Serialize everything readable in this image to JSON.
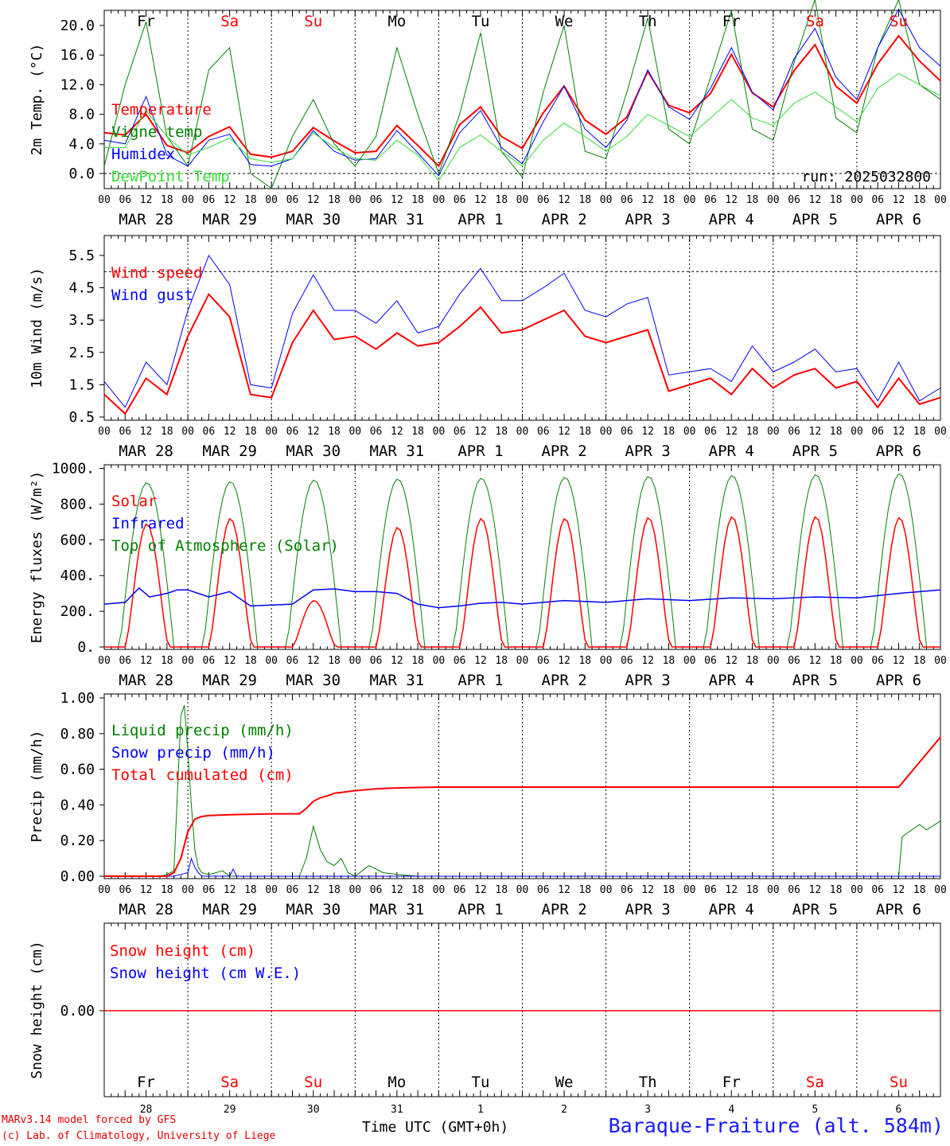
{
  "chart_data": [
    {
      "type": "line",
      "ylabel": "2m Temp. (°C)",
      "ylim": [
        -2,
        22
      ],
      "yticks": [
        "20.0",
        "16.0",
        "12.0",
        "8.0",
        "4.0",
        "0.0"
      ],
      "ytick_values": [
        20,
        16,
        12,
        8,
        4,
        0
      ],
      "legend_placement": "top-left",
      "annotation": "run: 2025032800",
      "day_names": [
        "Fr",
        "Sa",
        "Su",
        "Mo",
        "Tu",
        "We",
        "Th",
        "Fr",
        "Sa",
        "Su"
      ],
      "weekend": [
        false,
        true,
        true,
        false,
        false,
        false,
        false,
        false,
        true,
        true
      ],
      "x_hours": [
        0,
        6,
        12,
        18,
        24,
        30,
        36,
        42,
        48,
        54,
        60,
        66,
        72,
        78,
        84,
        90,
        96,
        102,
        108,
        114,
        120,
        126,
        132,
        138,
        144,
        150,
        156,
        162,
        168,
        174,
        180,
        186,
        192,
        198,
        204,
        210,
        216,
        222,
        228,
        234,
        240
      ],
      "series": [
        {
          "name": "Temperature",
          "color": "#ff0000",
          "values": [
            5.5,
            5.2,
            8.0,
            3.8,
            2.8,
            5.0,
            6.3,
            2.6,
            2.2,
            3.0,
            6.2,
            4.4,
            2.8,
            3.0,
            6.5,
            3.8,
            1.0,
            6.6,
            9.0,
            5.0,
            3.4,
            8.2,
            11.8,
            7.2,
            5.3,
            7.6,
            13.8,
            9.2,
            8.2,
            10.8,
            16.1,
            10.9,
            9.0,
            13.9,
            17.4,
            11.8,
            9.5,
            14.8,
            18.6,
            15.2,
            12.5
          ],
          "width": 2
        },
        {
          "name": "Vigne temp",
          "color": "#008000",
          "values": [
            1.0,
            12.0,
            20.5,
            5.0,
            1.0,
            14.0,
            17.0,
            0.0,
            -2.0,
            5.0,
            10.0,
            4.0,
            1.0,
            5.0,
            17.0,
            8.0,
            0.0,
            8.0,
            19.0,
            3.0,
            -0.5,
            11.0,
            20.0,
            3.0,
            2.0,
            11.0,
            21.0,
            6.0,
            4.0,
            13.0,
            22.0,
            6.0,
            4.5,
            15.0,
            23.5,
            7.5,
            5.5,
            17.0,
            23.5,
            12.0,
            10.0
          ],
          "width": 1
        },
        {
          "name": "Humidex",
          "color": "#0000ff",
          "values": [
            4.5,
            4.0,
            10.4,
            2.5,
            1.0,
            4.5,
            5.3,
            1.2,
            1.0,
            2.0,
            5.8,
            3.0,
            1.8,
            2.0,
            5.8,
            2.8,
            -0.3,
            5.5,
            8.5,
            3.5,
            1.3,
            7.0,
            11.8,
            6.0,
            3.5,
            7.2,
            14.0,
            9.0,
            7.3,
            11.5,
            17.0,
            11.0,
            8.6,
            15.5,
            19.6,
            13.0,
            10.0,
            17.0,
            22.2,
            17.0,
            14.5
          ],
          "width": 1
        },
        {
          "name": "DewPoint Temp",
          "color": "#33dd33",
          "values": [
            3.5,
            3.5,
            8.5,
            5.0,
            2.5,
            3.5,
            4.8,
            2.0,
            1.5,
            2.0,
            5.5,
            3.5,
            2.0,
            1.8,
            4.5,
            2.5,
            -1.0,
            3.5,
            5.2,
            3.0,
            1.0,
            4.5,
            6.8,
            5.0,
            3.0,
            5.0,
            8.0,
            6.5,
            5.0,
            7.5,
            10.0,
            7.5,
            6.5,
            9.5,
            11.0,
            9.0,
            7.0,
            11.5,
            13.5,
            12.0,
            10.5
          ],
          "width": 1
        }
      ]
    },
    {
      "type": "line",
      "ylabel": "10m Wind (m/s)",
      "ylim": [
        0.5,
        5.9
      ],
      "yticks": [
        "5.5",
        "4.5",
        "3.5",
        "2.5",
        "1.5",
        "0.5"
      ],
      "ytick_values": [
        5.5,
        4.5,
        3.5,
        2.5,
        1.5,
        0.5
      ],
      "reference_line": 5.0,
      "legend_placement": "top-left",
      "x_hours": [
        0,
        6,
        12,
        18,
        24,
        30,
        36,
        42,
        48,
        54,
        60,
        66,
        72,
        78,
        84,
        90,
        96,
        102,
        108,
        114,
        120,
        126,
        132,
        138,
        144,
        150,
        156,
        162,
        168,
        174,
        180,
        186,
        192,
        198,
        204,
        210,
        216,
        222,
        228,
        234,
        240
      ],
      "series": [
        {
          "name": "Wind speed",
          "color": "#ff0000",
          "values": [
            1.2,
            0.6,
            1.7,
            1.2,
            3.0,
            4.3,
            3.6,
            1.2,
            1.1,
            2.8,
            3.8,
            2.9,
            3.0,
            2.6,
            3.1,
            2.7,
            2.8,
            3.3,
            3.9,
            3.1,
            3.2,
            3.5,
            3.8,
            3.0,
            2.8,
            3.0,
            3.2,
            1.3,
            1.5,
            1.7,
            1.2,
            2.0,
            1.4,
            1.8,
            2.0,
            1.4,
            1.6,
            0.8,
            1.7,
            0.9,
            1.1
          ],
          "width": 2
        },
        {
          "name": "Wind gust",
          "color": "#0000ff",
          "values": [
            1.6,
            0.8,
            2.2,
            1.5,
            3.8,
            5.5,
            4.6,
            1.5,
            1.4,
            3.7,
            4.9,
            3.8,
            3.8,
            3.4,
            4.1,
            3.1,
            3.3,
            4.3,
            5.1,
            4.1,
            4.1,
            4.5,
            4.95,
            3.8,
            3.6,
            4.0,
            4.2,
            1.8,
            1.9,
            2.0,
            1.6,
            2.7,
            1.9,
            2.2,
            2.6,
            1.9,
            2.0,
            1.0,
            2.2,
            1.0,
            1.4
          ],
          "width": 1
        }
      ]
    },
    {
      "type": "line",
      "ylabel": "Energy fluxes (W/m²)",
      "ylim": [
        0,
        1000
      ],
      "yticks": [
        "1000.",
        "800.",
        "600.",
        "400.",
        "200.",
        "0."
      ],
      "ytick_values": [
        1000,
        800,
        600,
        400,
        200,
        0
      ],
      "legend_placement": "top-left",
      "solar_peaks": [
        690,
        720,
        260,
        670,
        720,
        720,
        725,
        730,
        730,
        725
      ],
      "toa_peaks": [
        920,
        925,
        935,
        940,
        945,
        950,
        955,
        960,
        965,
        970
      ],
      "infrared_x_hours": [
        0,
        6,
        10,
        13,
        18,
        21,
        24,
        30,
        36,
        42,
        48,
        54,
        60,
        66,
        72,
        78,
        84,
        90,
        96,
        102,
        108,
        114,
        120,
        132,
        144,
        156,
        168,
        180,
        192,
        204,
        216,
        228,
        240
      ],
      "infrared_values": [
        240,
        250,
        330,
        280,
        300,
        320,
        320,
        280,
        310,
        230,
        235,
        240,
        320,
        325,
        310,
        310,
        300,
        240,
        220,
        230,
        245,
        250,
        240,
        260,
        250,
        270,
        260,
        275,
        270,
        280,
        275,
        300,
        320
      ],
      "series": [
        {
          "name": "Solar",
          "color": "#ff0000"
        },
        {
          "name": "Infrared",
          "color": "#0000ff"
        },
        {
          "name": "Top of Atmosphere (Solar)",
          "color": "#008000"
        }
      ]
    },
    {
      "type": "line",
      "ylabel": "Precip (mm/h)",
      "ylim": [
        0,
        1.0
      ],
      "yticks": [
        "1.00",
        "0.80",
        "0.60",
        "0.40",
        "0.20",
        "0.00"
      ],
      "ytick_values": [
        1.0,
        0.8,
        0.6,
        0.4,
        0.2,
        0.0
      ],
      "legend_placement": "top-left",
      "series": [
        {
          "name": "Liquid precip (mm/h)",
          "color": "#008000",
          "x_hours": [
            0,
            16,
            18,
            20,
            22,
            23,
            24,
            25,
            26,
            27,
            28,
            30,
            34,
            36,
            38,
            40,
            48,
            56,
            58,
            60,
            62,
            64,
            66,
            68,
            70,
            72,
            74,
            76,
            78,
            80,
            84,
            90,
            96,
            228,
            229,
            231,
            234,
            236,
            240
          ],
          "values": [
            0,
            0,
            0.01,
            0.03,
            0.9,
            0.96,
            0.7,
            0.4,
            0.15,
            0.05,
            0.02,
            0.01,
            0.03,
            0.0,
            0.0,
            0.0,
            0.0,
            0.0,
            0.1,
            0.28,
            0.15,
            0.08,
            0.06,
            0.1,
            0.02,
            0.0,
            0.03,
            0.06,
            0.04,
            0.02,
            0.01,
            0.0,
            0.0,
            0.0,
            0.22,
            0.25,
            0.29,
            0.26,
            0.31
          ],
          "width": 1
        },
        {
          "name": "Snow precip (mm/h)",
          "color": "#0000ff",
          "x_hours": [
            0,
            20,
            22,
            24,
            25,
            26,
            27,
            28,
            36,
            37,
            38,
            48,
            240
          ],
          "values": [
            0,
            0,
            0.01,
            0.02,
            0.1,
            0.05,
            0.02,
            0.0,
            0.0,
            0.04,
            0.0,
            0.0,
            0.0
          ],
          "width": 1
        },
        {
          "name": "Total cumulated (cm)",
          "color": "#ff0000",
          "x_hours": [
            0,
            18,
            20,
            22,
            24,
            26,
            28,
            30,
            36,
            48,
            56,
            58,
            60,
            62,
            64,
            66,
            68,
            72,
            78,
            84,
            96,
            228,
            240
          ],
          "values": [
            0,
            0,
            0.02,
            0.1,
            0.25,
            0.32,
            0.335,
            0.34,
            0.345,
            0.35,
            0.35,
            0.38,
            0.42,
            0.44,
            0.45,
            0.465,
            0.47,
            0.48,
            0.49,
            0.495,
            0.5,
            0.5,
            0.78
          ],
          "width": 2
        }
      ]
    },
    {
      "type": "line",
      "ylabel": "Snow height (cm)",
      "yticks": [
        "0.00"
      ],
      "ytick_values": [
        0
      ],
      "legend_placement": "top-left",
      "day_names": [
        "Fr",
        "Sa",
        "Su",
        "Mo",
        "Tu",
        "We",
        "Th",
        "Fr",
        "Sa",
        "Su"
      ],
      "weekend": [
        false,
        true,
        true,
        false,
        false,
        false,
        false,
        false,
        true,
        true
      ],
      "day_numbers": [
        "28",
        "29",
        "30",
        "31",
        "1",
        "2",
        "3",
        "4",
        "5",
        "6"
      ],
      "series": [
        {
          "name": "Snow height (cm)",
          "color": "#ff0000",
          "values": [
            0,
            0
          ]
        },
        {
          "name": "Snow height (cm W.E.)",
          "color": "#0000ff",
          "values": [
            0,
            0
          ]
        }
      ]
    }
  ],
  "hour_ticks": [
    "00",
    "06",
    "12",
    "18"
  ],
  "date_labels": [
    "MAR 28",
    "MAR 29",
    "MAR 30",
    "MAR 31",
    "APR  1",
    "APR  2",
    "APR  3",
    "APR  4",
    "APR  5",
    "APR  6"
  ],
  "footer": {
    "credit_line1": "MARv3.14 model forced by GFS",
    "credit_line2": "(c) Lab. of Climatology, University of Liege",
    "xlabel": "Time UTC (GMT+0h)",
    "station": "Baraque-Fraiture (alt. 584m)"
  },
  "colors": {
    "weekday": "#000000",
    "weekend": "#ff0000",
    "station": "#1a1aff"
  }
}
